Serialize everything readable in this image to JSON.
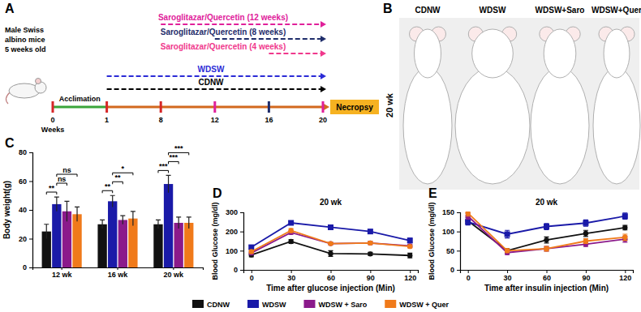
{
  "panel_a": {
    "label": "A",
    "subject": [
      "Male Swiss",
      "albino mice",
      "5 weeks old"
    ],
    "treatments": [
      {
        "text": "Saroglitazar/Quercetin (12 weeks)",
        "color": "#e0209a"
      },
      {
        "text": "Saroglitazar/Quercetin (8 weeks)",
        "color": "#1f2d6b"
      },
      {
        "text": "Saroglitazar/Quercetin (4 weeks)",
        "color": "#f0388c"
      }
    ],
    "diets": [
      {
        "text": "WDSW",
        "color": "#2b2bd6"
      },
      {
        "text": "CDNW",
        "color": "#000000"
      }
    ],
    "acclimation": "Acclimation",
    "weeks": [
      0,
      1,
      8,
      12,
      16,
      20
    ],
    "weeks_label": "Weeks",
    "endpoint": "Necropsy"
  },
  "panel_b": {
    "label": "B",
    "time": "20 wk",
    "groups": [
      "CDNW",
      "WDSW",
      "WDSW+Saro",
      "WDSW+Quer"
    ]
  },
  "chart_data": [
    {
      "type": "bar",
      "panel": "C",
      "y_label": "Body weight(g)",
      "categories": [
        "12 wk",
        "16 wk",
        "20 wk"
      ],
      "series": [
        {
          "name": "CDNW",
          "color": "#111111",
          "values": [
            25,
            30,
            30
          ],
          "errors": [
            5,
            3,
            3
          ]
        },
        {
          "name": "WDSW",
          "color": "#1a1aa8",
          "values": [
            44,
            46,
            58
          ],
          "errors": [
            5,
            4,
            6
          ]
        },
        {
          "name": "WDSW + Saro",
          "color": "#8b1a8b",
          "values": [
            39,
            33,
            31
          ],
          "errors": [
            7,
            3,
            4
          ]
        },
        {
          "name": "WDSW + Quer",
          "color": "#f07a1a",
          "values": [
            37,
            34,
            31
          ],
          "errors": [
            5,
            5,
            4
          ]
        }
      ],
      "ylim": [
        0,
        80
      ],
      "yticks": [
        0,
        20,
        40,
        60,
        80
      ],
      "legend": "bottom",
      "annotations": [
        {
          "text": "**",
          "category": "12 wk",
          "between": [
            "CDNW",
            "WDSW"
          ]
        },
        {
          "text": "ns",
          "category": "12 wk",
          "between": [
            "WDSW",
            "WDSW + Saro"
          ]
        },
        {
          "text": "ns",
          "category": "12 wk",
          "between": [
            "WDSW",
            "WDSW + Quer"
          ]
        },
        {
          "text": "**",
          "category": "16 wk",
          "between": [
            "CDNW",
            "WDSW"
          ]
        },
        {
          "text": "**",
          "category": "16 wk",
          "between": [
            "WDSW",
            "WDSW + Saro"
          ]
        },
        {
          "text": "*",
          "category": "16 wk",
          "between": [
            "WDSW",
            "WDSW + Quer"
          ]
        },
        {
          "text": "***",
          "category": "20 wk",
          "between": [
            "CDNW",
            "WDSW"
          ]
        },
        {
          "text": "***",
          "category": "20 wk",
          "between": [
            "WDSW",
            "WDSW + Saro"
          ]
        },
        {
          "text": "***",
          "category": "20 wk",
          "between": [
            "WDSW",
            "WDSW + Quer"
          ]
        }
      ]
    },
    {
      "type": "line",
      "panel": "D",
      "title": "20 wk",
      "x_label": "Time after glucose injection (Min)",
      "y_label": "Blood Glucose (mg/dl)",
      "x": [
        0,
        30,
        60,
        90,
        120
      ],
      "xlim": [
        -6,
        126
      ],
      "xticks": [
        0,
        30,
        60,
        90,
        120
      ],
      "ylim": [
        0,
        300
      ],
      "yticks": [
        0,
        100,
        200,
        300
      ],
      "series": [
        {
          "name": "CDNW",
          "color": "#111111",
          "marker": "circle",
          "values": [
            78,
            148,
            85,
            83,
            75
          ],
          "errors": [
            10,
            10,
            15,
            8,
            12
          ]
        },
        {
          "name": "WDSW",
          "color": "#1a1aa8",
          "marker": "square",
          "values": [
            118,
            245,
            222,
            200,
            153
          ],
          "errors": [
            8,
            8,
            10,
            10,
            12
          ]
        },
        {
          "name": "WDSW + Saro",
          "color": "#8b1a8b",
          "marker": "circle",
          "values": [
            88,
            195,
            137,
            140,
            125
          ],
          "errors": [
            8,
            10,
            6,
            8,
            8
          ]
        },
        {
          "name": "WDSW + Quer",
          "color": "#f07a1a",
          "marker": "circle",
          "values": [
            95,
            205,
            137,
            140,
            122
          ],
          "errors": [
            8,
            10,
            6,
            8,
            8
          ]
        }
      ]
    },
    {
      "type": "line",
      "panel": "E",
      "title": "20 wk",
      "x_label": "Time after insulin injection (Min)",
      "y_label": "Blood Glucose (mg/dl)",
      "x": [
        0,
        30,
        60,
        90,
        120
      ],
      "xlim": [
        -6,
        126
      ],
      "xticks": [
        0,
        30,
        60,
        90,
        120
      ],
      "ylim": [
        0,
        150
      ],
      "yticks": [
        0,
        50,
        100,
        150
      ],
      "series": [
        {
          "name": "CDNW",
          "color": "#111111",
          "marker": "circle",
          "values": [
            128,
            50,
            78,
            95,
            110
          ],
          "errors": [
            8,
            5,
            8,
            8,
            6
          ]
        },
        {
          "name": "WDSW",
          "color": "#1a1aa8",
          "marker": "square",
          "values": [
            125,
            93,
            113,
            122,
            140
          ],
          "errors": [
            8,
            10,
            8,
            8,
            8
          ]
        },
        {
          "name": "WDSW + Saro",
          "color": "#8b1a8b",
          "marker": "circle",
          "values": [
            140,
            45,
            55,
            67,
            80
          ],
          "errors": [
            8,
            5,
            6,
            6,
            8
          ]
        },
        {
          "name": "WDSW + Quer",
          "color": "#f07a1a",
          "marker": "circle",
          "values": [
            148,
            50,
            55,
            75,
            85
          ],
          "errors": [
            8,
            5,
            6,
            6,
            8
          ]
        }
      ]
    }
  ]
}
